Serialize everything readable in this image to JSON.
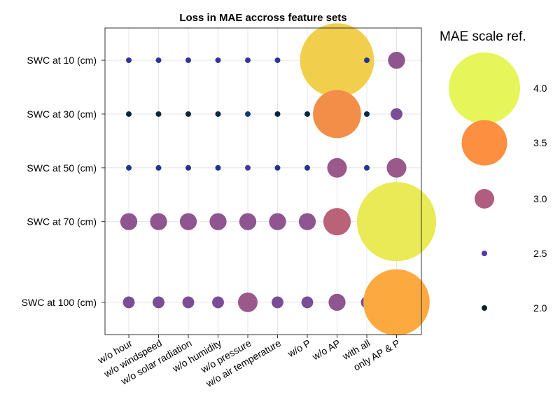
{
  "chart_data": {
    "type": "scatter",
    "title": "Loss in MAE accross feature sets",
    "xlabel": "",
    "ylabel": "",
    "grid": true,
    "x_categories": [
      "w/o hour",
      "w/o windspeed",
      "w/o solar radiation",
      "w/o humidity",
      "w/o pressure",
      "w/o air temperature",
      "w/o P",
      "w/o AP",
      "with all",
      "only AP & P"
    ],
    "y_categories": [
      "SWC at 10 (cm)",
      "SWC at 30 (cm)",
      "SWC at 50 (cm)",
      "SWC at 70 (cm)",
      "SWC at 100 (cm)"
    ],
    "y_values": [
      10,
      30,
      50,
      70,
      100
    ],
    "ylim": [
      -2,
      112
    ],
    "values": [
      [
        2.5,
        2.5,
        2.5,
        2.55,
        2.55,
        2.5,
        2.5,
        4.05,
        2.45,
        2.95
      ],
      [
        2.0,
        2.0,
        2.0,
        2.0,
        2.25,
        1.95,
        2.0,
        3.55,
        2.0,
        2.85
      ],
      [
        2.4,
        2.4,
        2.4,
        2.4,
        2.6,
        2.4,
        2.4,
        3.0,
        2.4,
        3.0
      ],
      [
        2.95,
        2.95,
        2.95,
        2.95,
        2.95,
        2.95,
        2.95,
        3.15,
        2.9,
        4.15
      ],
      [
        2.85,
        2.85,
        2.85,
        2.85,
        3.0,
        2.85,
        2.85,
        2.95,
        2.85,
        3.9
      ]
    ],
    "legend": {
      "title": "MAE scale ref.",
      "placement": "right",
      "items": [
        {
          "value": 4.0,
          "label": "4.0",
          "color": "#e6f55a"
        },
        {
          "value": 3.5,
          "label": "3.5",
          "color": "#fc9040"
        },
        {
          "value": 3.0,
          "label": "3.0",
          "color": "#b05d80"
        },
        {
          "value": 2.5,
          "label": "2.5",
          "color": "#5438a0"
        },
        {
          "value": 2.0,
          "label": "2.0",
          "color": "#03252f"
        }
      ]
    },
    "colorscale": [
      {
        "value": 1.9,
        "color": "#03232f"
      },
      {
        "value": 2.05,
        "color": "#0a2a48"
      },
      {
        "value": 2.25,
        "color": "#123a72"
      },
      {
        "value": 2.4,
        "color": "#1f3590"
      },
      {
        "value": 2.55,
        "color": "#3a339c"
      },
      {
        "value": 2.7,
        "color": "#6240a0"
      },
      {
        "value": 2.85,
        "color": "#7b4d96"
      },
      {
        "value": 2.95,
        "color": "#8f5590"
      },
      {
        "value": 3.1,
        "color": "#b05d80"
      },
      {
        "value": 3.3,
        "color": "#d8705e"
      },
      {
        "value": 3.5,
        "color": "#f08a48"
      },
      {
        "value": 3.9,
        "color": "#fcaa40"
      },
      {
        "value": 4.2,
        "color": "#e6f55a"
      }
    ]
  }
}
